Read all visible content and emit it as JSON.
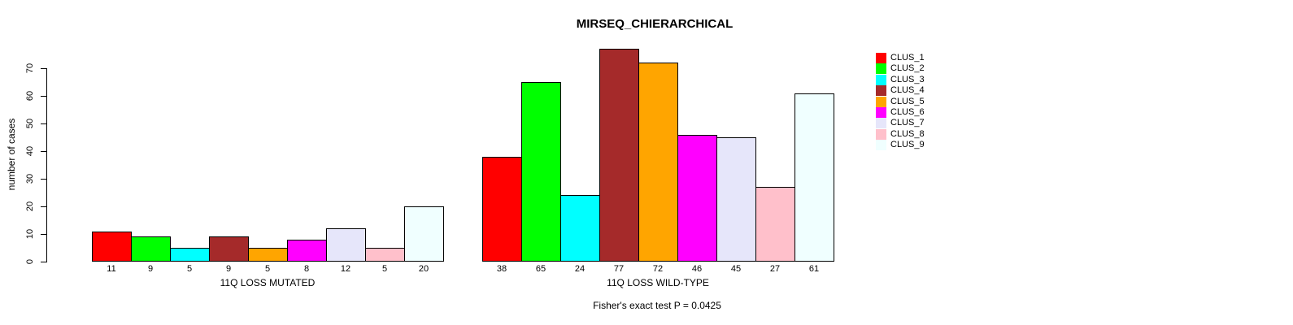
{
  "chart_data": {
    "type": "bar",
    "title": "MIRSEQ_CHIERARCHICAL",
    "ylabel": "number of cases",
    "xlabel": "",
    "ylim": [
      0,
      77
    ],
    "yticks": [
      0,
      10,
      20,
      30,
      40,
      50,
      60,
      70
    ],
    "grid": false,
    "bar_border_color": "#000000",
    "legend_position": "right",
    "legend": [
      {
        "label": "CLUS_1",
        "color": "#FF0000"
      },
      {
        "label": "CLUS_2",
        "color": "#00FF00"
      },
      {
        "label": "CLUS_3",
        "color": "#00FFFF"
      },
      {
        "label": "CLUS_4",
        "color": "#A52A2A"
      },
      {
        "label": "CLUS_5",
        "color": "#FFA500"
      },
      {
        "label": "CLUS_6",
        "color": "#FF00FF"
      },
      {
        "label": "CLUS_7",
        "color": "#E6E6FA"
      },
      {
        "label": "CLUS_8",
        "color": "#FFC0CB"
      },
      {
        "label": "CLUS_9",
        "color": "#F0FFFF"
      }
    ],
    "groups": [
      {
        "label": "11Q LOSS MUTATED",
        "values": [
          11,
          9,
          5,
          9,
          5,
          8,
          12,
          5,
          20
        ]
      },
      {
        "label": "11Q LOSS WILD-TYPE",
        "values": [
          38,
          65,
          24,
          77,
          72,
          46,
          45,
          27,
          61
        ]
      }
    ],
    "footnote": "Fisher's exact test P = 0.0425"
  }
}
